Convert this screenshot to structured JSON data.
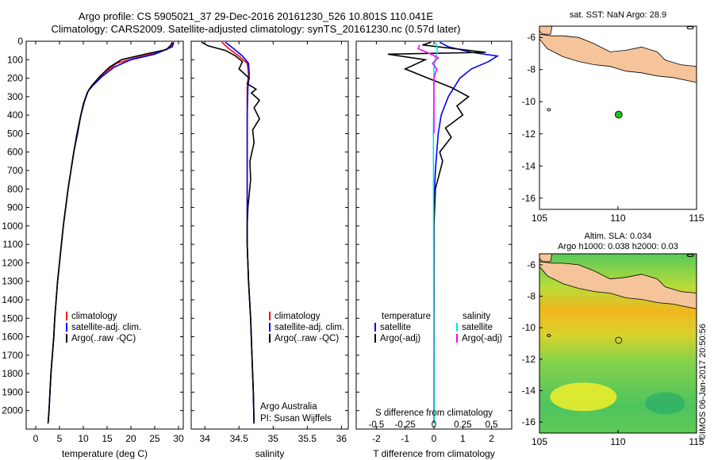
{
  "header": {
    "title_line1": "Argo profile: CS 5905021_37 29-Dec-2016 20161230_526 10.801S 110.041E",
    "title_line2": "Climatology: CARS2009. Satellite-adjusted climatology: synTS_20161230.nc (0.57d later)"
  },
  "colors": {
    "climatology": "#ff0000",
    "satellite": "#0000ff",
    "argo": "#000000",
    "salinity_satellite": "#00e5e5",
    "salinity_argo": "#ff00ff",
    "land": "#f5c49a",
    "float_marker": "#22bb22"
  },
  "chart_data": [
    {
      "type": "line",
      "name": "temperature-panel",
      "xlabel": "temperature (deg C)",
      "ylabel": "",
      "xlim": [
        -2,
        31
      ],
      "ylim": [
        2100,
        0
      ],
      "xticks": [
        0,
        5,
        10,
        15,
        20,
        25,
        30
      ],
      "yticks": [
        0,
        100,
        200,
        300,
        400,
        500,
        600,
        700,
        800,
        900,
        1000,
        1100,
        1200,
        1300,
        1400,
        1500,
        1600,
        1700,
        1800,
        1900,
        2000
      ],
      "legend": [
        "climatology",
        "satellite-adj. clim.",
        "Argo(..raw -QC)"
      ],
      "legend_position": "bottom-center",
      "series": [
        {
          "name": "climatology",
          "color": "#ff0000",
          "values": [
            [
              28.8,
              5
            ],
            [
              28.5,
              30
            ],
            [
              26,
              60
            ],
            [
              21,
              90
            ],
            [
              17,
              120
            ],
            [
              14.5,
              170
            ],
            [
              12.5,
              220
            ],
            [
              11.2,
              260
            ],
            [
              10.3,
              320
            ],
            [
              9.5,
              400
            ],
            [
              8.8,
              500
            ],
            [
              8,
              600
            ],
            [
              7.4,
              700
            ],
            [
              6.8,
              800
            ],
            [
              6.3,
              900
            ],
            [
              5.8,
              1000
            ],
            [
              5.4,
              1100
            ],
            [
              5,
              1200
            ],
            [
              4.6,
              1300
            ],
            [
              4.3,
              1400
            ],
            [
              4,
              1500
            ],
            [
              3.8,
              1600
            ],
            [
              3.5,
              1700
            ],
            [
              3.2,
              1800
            ],
            [
              3,
              1900
            ],
            [
              2.8,
              2000
            ],
            [
              2.6,
              2070
            ]
          ]
        },
        {
          "name": "satellite-adj. clim.",
          "color": "#0000ff",
          "values": [
            [
              29,
              5
            ],
            [
              28.7,
              30
            ],
            [
              25,
              70
            ],
            [
              20,
              100
            ],
            [
              16.5,
              140
            ],
            [
              14,
              190
            ],
            [
              12,
              240
            ],
            [
              11,
              270
            ],
            [
              10.2,
              330
            ],
            [
              9.4,
              410
            ],
            [
              8.7,
              510
            ],
            [
              8,
              600
            ],
            [
              7.4,
              700
            ],
            [
              6.8,
              800
            ],
            [
              6.3,
              900
            ],
            [
              5.8,
              1000
            ],
            [
              5.4,
              1100
            ],
            [
              5,
              1200
            ],
            [
              4.6,
              1300
            ],
            [
              4.3,
              1400
            ],
            [
              4,
              1500
            ],
            [
              3.8,
              1600
            ],
            [
              3.5,
              1700
            ],
            [
              3.2,
              1800
            ],
            [
              3,
              1900
            ],
            [
              2.8,
              2000
            ],
            [
              2.6,
              2070
            ]
          ]
        },
        {
          "name": "Argo(..raw -QC)",
          "color": "#000000",
          "values": [
            [
              28.7,
              5
            ],
            [
              28.4,
              20
            ],
            [
              27.5,
              45
            ],
            [
              23,
              70
            ],
            [
              18,
              100
            ],
            [
              15.5,
              140
            ],
            [
              13.5,
              190
            ],
            [
              11.8,
              240
            ],
            [
              10.8,
              280
            ],
            [
              10,
              340
            ],
            [
              9.3,
              420
            ],
            [
              8.6,
              510
            ],
            [
              8,
              600
            ],
            [
              7.4,
              700
            ],
            [
              6.8,
              800
            ],
            [
              6.3,
              900
            ],
            [
              5.8,
              1000
            ],
            [
              5.4,
              1100
            ],
            [
              5,
              1200
            ],
            [
              4.6,
              1300
            ],
            [
              4.3,
              1400
            ],
            [
              4,
              1500
            ],
            [
              3.8,
              1600
            ],
            [
              3.5,
              1700
            ],
            [
              3.2,
              1800
            ],
            [
              3,
              1900
            ],
            [
              2.8,
              2000
            ],
            [
              2.6,
              2070
            ]
          ]
        }
      ]
    },
    {
      "type": "line",
      "name": "salinity-panel",
      "xlabel": "salinity",
      "xlim": [
        33.8,
        36.1
      ],
      "ylim": [
        2100,
        0
      ],
      "xticks": [
        34,
        34.5,
        35,
        35.5,
        36
      ],
      "legend": [
        "climatology",
        "satellite-adj. clim.",
        "Argo(..raw -QC)"
      ],
      "legend_position": "bottom-center",
      "annotations": [
        "Argo Australia",
        "PI: Susan Wijffels"
      ],
      "series": [
        {
          "name": "climatology",
          "color": "#ff0000",
          "values": [
            [
              34.25,
              5
            ],
            [
              34.35,
              40
            ],
            [
              34.5,
              80
            ],
            [
              34.62,
              120
            ],
            [
              34.64,
              180
            ],
            [
              34.62,
              250
            ],
            [
              34.62,
              400
            ],
            [
              34.62,
              600
            ],
            [
              34.62,
              800
            ],
            [
              34.62,
              1000
            ],
            [
              34.62,
              1100
            ],
            [
              34.64,
              1300
            ],
            [
              34.67,
              1500
            ],
            [
              34.69,
              1700
            ],
            [
              34.71,
              1900
            ],
            [
              34.72,
              2070
            ]
          ]
        },
        {
          "name": "satellite-adj. clim.",
          "color": "#0000ff",
          "values": [
            [
              34.3,
              5
            ],
            [
              34.42,
              40
            ],
            [
              34.55,
              80
            ],
            [
              34.64,
              120
            ],
            [
              34.65,
              180
            ],
            [
              34.63,
              250
            ],
            [
              34.62,
              400
            ],
            [
              34.62,
              600
            ],
            [
              34.62,
              800
            ],
            [
              34.62,
              1000
            ],
            [
              34.62,
              1100
            ],
            [
              34.64,
              1300
            ],
            [
              34.67,
              1500
            ],
            [
              34.69,
              1700
            ],
            [
              34.71,
              1900
            ],
            [
              34.72,
              2070
            ]
          ]
        },
        {
          "name": "Argo(..raw -QC)",
          "color": "#000000",
          "values": [
            [
              33.95,
              5
            ],
            [
              34.05,
              25
            ],
            [
              34.3,
              50
            ],
            [
              34.45,
              80
            ],
            [
              34.55,
              110
            ],
            [
              34.5,
              150
            ],
            [
              34.65,
              200
            ],
            [
              34.62,
              230
            ],
            [
              34.75,
              260
            ],
            [
              34.68,
              280
            ],
            [
              34.8,
              320
            ],
            [
              34.72,
              360
            ],
            [
              34.8,
              420
            ],
            [
              34.7,
              480
            ],
            [
              34.72,
              550
            ],
            [
              34.66,
              650
            ],
            [
              34.67,
              750
            ],
            [
              34.63,
              900
            ],
            [
              34.62,
              1000
            ],
            [
              34.62,
              1100
            ],
            [
              34.64,
              1300
            ],
            [
              34.67,
              1500
            ],
            [
              34.69,
              1700
            ],
            [
              34.71,
              1900
            ],
            [
              34.72,
              2070
            ]
          ]
        }
      ]
    },
    {
      "type": "line",
      "name": "difference-panel",
      "xlabel": "T difference from climatology",
      "xlabel_top": "S difference from climatology",
      "xlim": [
        -2.7,
        2.7
      ],
      "ylim": [
        2100,
        0
      ],
      "xticks_T": [
        -2,
        -1,
        0,
        1,
        2
      ],
      "xticks_S_labels": [
        "-0.5",
        "-0.25",
        "0",
        "0.25",
        "0.5"
      ],
      "xticks_S_values": [
        -0.5,
        -0.25,
        0,
        0.25,
        0.5
      ],
      "legend_left_title": "temperature",
      "legend_right_title": "salinity",
      "legend_left": [
        "satellite",
        "Argo(-adj)"
      ],
      "legend_right": [
        "satellite",
        "Argo(-adj)"
      ],
      "series": [
        {
          "name": "temperature satellite",
          "color": "#0000ff",
          "values": [
            [
              0.2,
              5
            ],
            [
              0.5,
              30
            ],
            [
              1.3,
              60
            ],
            [
              2.2,
              80
            ],
            [
              1.9,
              110
            ],
            [
              1.3,
              150
            ],
            [
              0.9,
              200
            ],
            [
              0.5,
              300
            ],
            [
              0.25,
              400
            ],
            [
              0.15,
              500
            ],
            [
              0.05,
              700
            ],
            [
              0,
              900
            ],
            [
              0,
              2070
            ]
          ]
        },
        {
          "name": "temperature Argo(-adj)",
          "color": "#000000",
          "values": [
            [
              -0.1,
              5
            ],
            [
              -0.4,
              20
            ],
            [
              1.8,
              60
            ],
            [
              -1.6,
              70
            ],
            [
              -0.3,
              100
            ],
            [
              -1.0,
              150
            ],
            [
              -0.2,
              200
            ],
            [
              0.6,
              250
            ],
            [
              1.2,
              300
            ],
            [
              0.8,
              350
            ],
            [
              1.0,
              400
            ],
            [
              0.4,
              470
            ],
            [
              0.6,
              520
            ],
            [
              0.2,
              600
            ],
            [
              0.3,
              650
            ],
            [
              0.05,
              800
            ],
            [
              0,
              1000
            ],
            [
              0,
              2070
            ]
          ]
        },
        {
          "name": "salinity satellite",
          "color": "#00e5e5",
          "values": [
            [
              0.05,
              5
            ],
            [
              0.1,
              30
            ],
            [
              0.12,
              60
            ],
            [
              0.05,
              90
            ],
            [
              0,
              150
            ],
            [
              0,
              300
            ],
            [
              -0.02,
              500
            ],
            [
              0,
              2070
            ]
          ]
        },
        {
          "name": "salinity Argo(-adj)",
          "color": "#ff00ff",
          "values": [
            [
              -0.5,
              20
            ],
            [
              -0.55,
              40
            ],
            [
              -0.1,
              70
            ],
            [
              0.15,
              90
            ],
            [
              -0.05,
              120
            ],
            [
              0.1,
              150
            ],
            [
              0,
              200
            ],
            [
              0,
              300
            ],
            [
              0,
              500
            ]
          ]
        }
      ]
    }
  ],
  "maps": {
    "top": {
      "title": "sat. SST: NaN Argo: 28.9",
      "lon_ticks": [
        105,
        110,
        115
      ],
      "lat_ticks": [
        -6,
        -8,
        -10,
        -12,
        -14,
        -16
      ],
      "float_lon": 110.041,
      "float_lat": -10.801
    },
    "bottom": {
      "title_line1": "Altim. SLA: 0.034",
      "title_line2": "Argo h1000: 0.038 h2000: 0.03",
      "lon_ticks": [
        105,
        110,
        115
      ],
      "lat_ticks": [
        -6,
        -8,
        -10,
        -12,
        -14,
        -16
      ],
      "float_lon": 110.041,
      "float_lat": -10.801
    }
  },
  "footer": {
    "stamp": "©IMOS 06-Jan-2017 20:50:56"
  }
}
